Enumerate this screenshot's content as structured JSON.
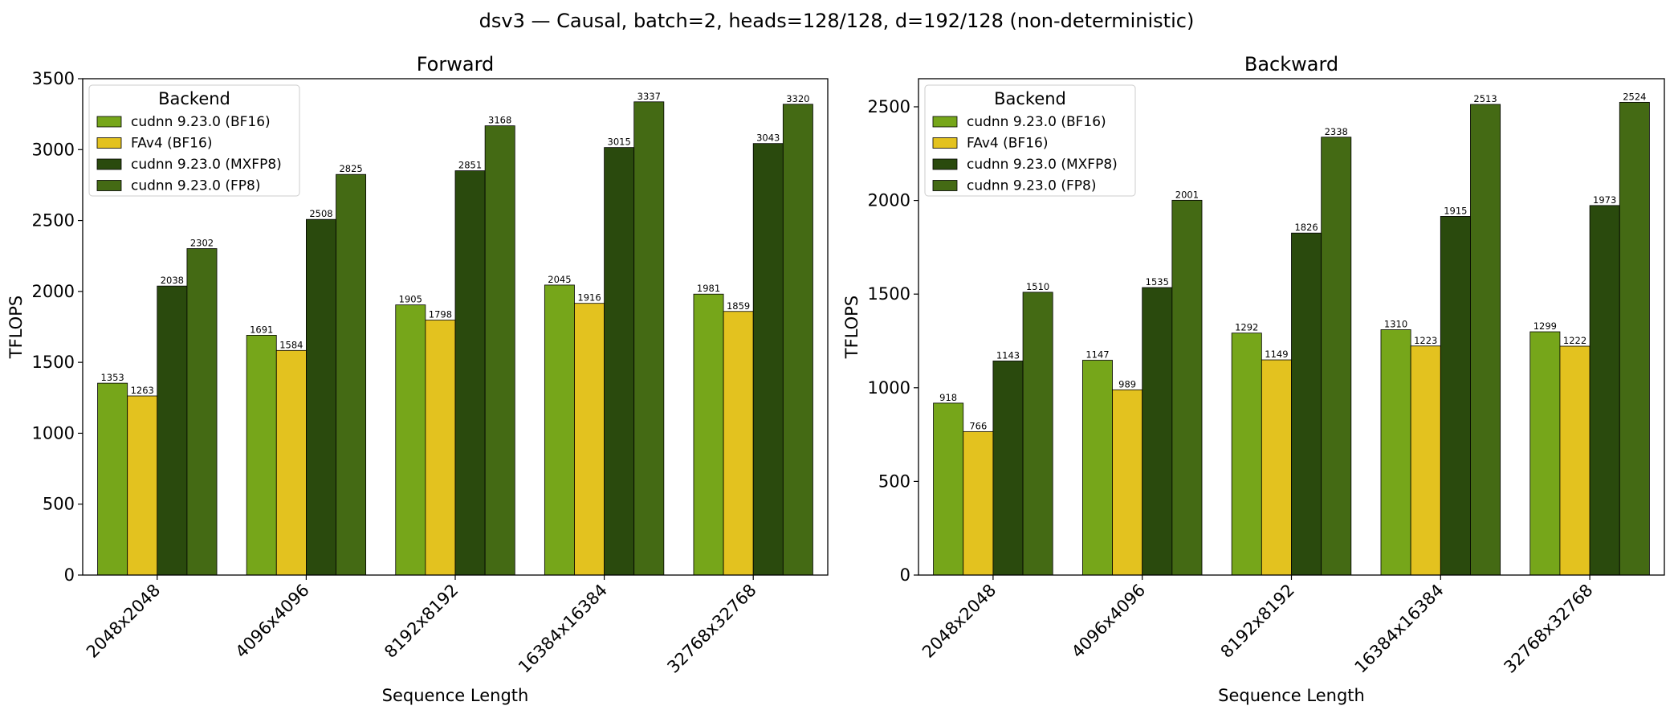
{
  "figure": {
    "suptitle": "dsv3 — Causal, batch=2, heads=128/128, d=192/128 (non-deterministic)"
  },
  "colors": {
    "cudnn 9.23.0 (BF16)": "#76a61a",
    "FAv4 (BF16)": "#e3c21f",
    "cudnn 9.23.0 (MXFP8)": "#2a4a0d",
    "cudnn 9.23.0 (FP8)": "#446a14"
  },
  "chart_data": [
    {
      "type": "bar",
      "title": "Forward",
      "xlabel": "Sequence Length",
      "ylabel": "TFLOPS",
      "ylim": [
        0,
        3500
      ],
      "yticks": [
        0,
        500,
        1000,
        1500,
        2000,
        2500,
        3000,
        3500
      ],
      "categories": [
        "2048x2048",
        "4096x4096",
        "8192x8192",
        "16384x16384",
        "32768x32768"
      ],
      "legend": {
        "title": "Backend",
        "position": "upper-left"
      },
      "series": [
        {
          "name": "cudnn 9.23.0 (BF16)",
          "values": [
            1353,
            1691,
            1905,
            2045,
            1981
          ]
        },
        {
          "name": "FAv4 (BF16)",
          "values": [
            1263,
            1584,
            1798,
            1916,
            1859
          ]
        },
        {
          "name": "cudnn 9.23.0 (MXFP8)",
          "values": [
            2038,
            2508,
            2851,
            3015,
            3043
          ]
        },
        {
          "name": "cudnn 9.23.0 (FP8)",
          "values": [
            2302,
            2825,
            3168,
            3337,
            3320
          ]
        }
      ]
    },
    {
      "type": "bar",
      "title": "Backward",
      "xlabel": "Sequence Length",
      "ylabel": "TFLOPS",
      "ylim": [
        0,
        2650
      ],
      "yticks": [
        0,
        500,
        1000,
        1500,
        2000,
        2500
      ],
      "categories": [
        "2048x2048",
        "4096x4096",
        "8192x8192",
        "16384x16384",
        "32768x32768"
      ],
      "legend": {
        "title": "Backend",
        "position": "upper-left"
      },
      "series": [
        {
          "name": "cudnn 9.23.0 (BF16)",
          "values": [
            918,
            1147,
            1292,
            1310,
            1299
          ]
        },
        {
          "name": "FAv4 (BF16)",
          "values": [
            766,
            989,
            1149,
            1223,
            1222
          ]
        },
        {
          "name": "cudnn 9.23.0 (MXFP8)",
          "values": [
            1143,
            1535,
            1826,
            1915,
            1973
          ]
        },
        {
          "name": "cudnn 9.23.0 (FP8)",
          "values": [
            1510,
            2001,
            2338,
            2513,
            2524
          ]
        }
      ]
    }
  ]
}
